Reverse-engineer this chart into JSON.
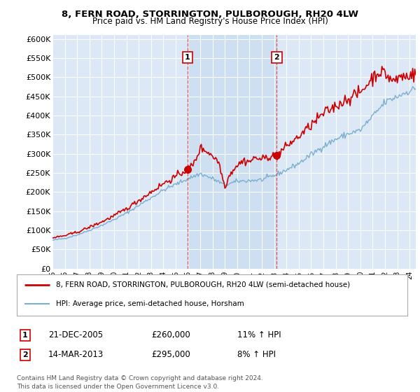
{
  "title": "8, FERN ROAD, STORRINGTON, PULBOROUGH, RH20 4LW",
  "subtitle": "Price paid vs. HM Land Registry's House Price Index (HPI)",
  "yticks": [
    0,
    50000,
    100000,
    150000,
    200000,
    250000,
    300000,
    350000,
    400000,
    450000,
    500000,
    550000,
    600000
  ],
  "background_color": "#ffffff",
  "plot_bg_color": "#dce8f5",
  "grid_color": "#ffffff",
  "sale1_x": 2005.97,
  "sale1_y": 260000,
  "sale1_date_str": "21-DEC-2005",
  "sale1_hpi_pct": "11%",
  "sale2_x": 2013.21,
  "sale2_y": 295000,
  "sale2_date_str": "14-MAR-2013",
  "sale2_hpi_pct": "8%",
  "line_property_color": "#cc0000",
  "line_hpi_color": "#7aafcf",
  "shade_color": "#ccdff0",
  "vline_color": "#dd3333",
  "legend_property": "8, FERN ROAD, STORRINGTON, PULBOROUGH, RH20 4LW (semi-detached house)",
  "legend_hpi": "HPI: Average price, semi-detached house, Horsham",
  "footer": "Contains HM Land Registry data © Crown copyright and database right 2024.\nThis data is licensed under the Open Government Licence v3.0.",
  "xmin": 1995.0,
  "xmax": 2024.5,
  "ymin": 0,
  "ymax": 610000
}
